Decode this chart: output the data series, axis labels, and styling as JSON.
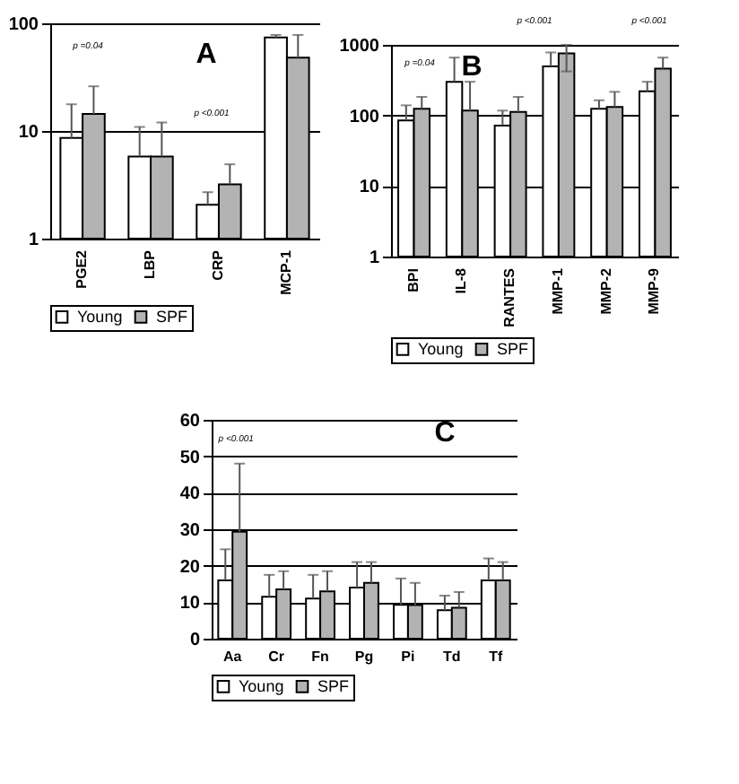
{
  "chart_data": [
    {
      "type": "bar",
      "title": "A",
      "categories": [
        "PGE2",
        "LBP",
        "CRP",
        "MCP-1"
      ],
      "log": true,
      "ylim": [
        1,
        100
      ],
      "yticks": [
        1,
        10,
        100
      ],
      "grid": "y",
      "legend": "bottom",
      "series": [
        {
          "name": "Young",
          "color": "#ffffff",
          "values": [
            8.6,
            5.8,
            2.06,
            74
          ],
          "errors": [
            [
              8.6,
              17.7
            ],
            [
              5.8,
              10.9
            ],
            [
              2.06,
              2.7
            ],
            [
              74,
              78
            ]
          ]
        },
        {
          "name": "SPF",
          "color": "#b3b3b3",
          "values": [
            14.4,
            5.8,
            3.2,
            48
          ],
          "errors": [
            [
              14.4,
              26
            ],
            [
              5.8,
              12
            ],
            [
              3.2,
              4.9
            ],
            [
              48,
              78
            ]
          ]
        }
      ],
      "annotations": [
        "p =0.04",
        "p <0.001"
      ]
    },
    {
      "type": "bar",
      "title": "B",
      "categories": [
        "BPI",
        "IL-8",
        "RANTES",
        "MMP-1",
        "MMP-2",
        "MMP-9"
      ],
      "log": true,
      "ylim": [
        1,
        1000
      ],
      "yticks": [
        1,
        10,
        100,
        1000
      ],
      "grid": "y",
      "legend": "bottom",
      "series": [
        {
          "name": "Young",
          "color": "#ffffff",
          "values": [
            85,
            300,
            72,
            494,
            124,
            220
          ],
          "errors": [
            [
              85,
              139
            ],
            [
              300,
              660
            ],
            [
              72,
              117
            ],
            [
              494,
              780
            ],
            [
              124,
              164
            ],
            [
              220,
              300
            ]
          ]
        },
        {
          "name": "SPF",
          "color": "#b3b3b3",
          "values": [
            124,
            117,
            112,
            760,
            132,
            460
          ],
          "errors": [
            [
              124,
              183
            ],
            [
              117,
              300
            ],
            [
              112,
              183
            ],
            [
              420,
              1000
            ],
            [
              132,
              216
            ],
            [
              460,
              660
            ]
          ]
        }
      ],
      "annotations": [
        "p =0.04",
        "p <0.001",
        "p <0.001"
      ]
    },
    {
      "type": "bar",
      "title": "C",
      "categories": [
        "Aa",
        "Cr",
        "Fn",
        "Pg",
        "Pi",
        "Td",
        "Tf"
      ],
      "ylim": [
        0,
        60
      ],
      "yticks": [
        0,
        10,
        20,
        30,
        40,
        50,
        60
      ],
      "grid": "y",
      "legend": "bottom",
      "series": [
        {
          "name": "Young",
          "color": "#ffffff",
          "values": [
            16,
            11.5,
            11,
            14,
            9.3,
            7.8,
            16
          ],
          "errors": [
            [
              16,
              24.5
            ],
            [
              11.5,
              17.5
            ],
            [
              11,
              17.5
            ],
            [
              14,
              21
            ],
            [
              9.3,
              16.5
            ],
            [
              7.8,
              11.8
            ],
            [
              16,
              22
            ]
          ]
        },
        {
          "name": "SPF",
          "color": "#b3b3b3",
          "values": [
            29.3,
            13.5,
            13,
            15.3,
            9.2,
            8.5,
            16
          ],
          "errors": [
            [
              29.3,
              48
            ],
            [
              13.5,
              18.5
            ],
            [
              13,
              18.5
            ],
            [
              15.3,
              21
            ],
            [
              9.2,
              15.3
            ],
            [
              8.5,
              12.8
            ],
            [
              16,
              21
            ]
          ]
        }
      ],
      "annotations": [
        "p <0.001"
      ]
    }
  ]
}
